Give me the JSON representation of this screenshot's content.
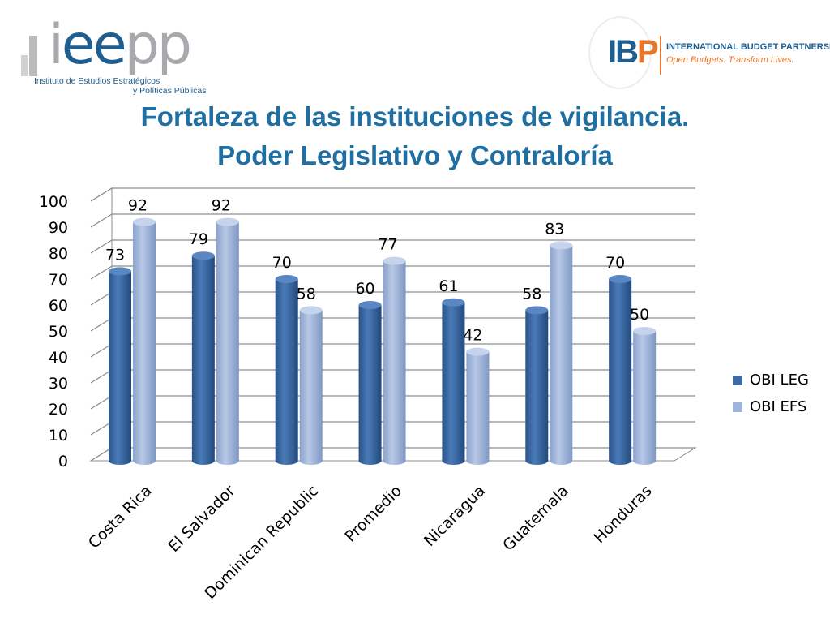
{
  "logos": {
    "ieepp": {
      "line1": "Instituto de Estudios Estratégicos",
      "line2": "y Políticas Públicas"
    },
    "ibp": {
      "name": "INTERNATIONAL BUDGET PARTNERSHIP",
      "tagline": "Open Budgets. Transform Lives."
    }
  },
  "title_line1": "Fortaleza de las instituciones de vigilancia.",
  "title_line2": "Poder Legislativo y Contraloría",
  "chart_data": {
    "type": "bar",
    "title": "Fortaleza de las instituciones de vigilancia. Poder Legislativo y Contraloría",
    "categories": [
      "Costa Rica",
      "El Salvador",
      "Dominican Republic",
      "Promedio",
      "Nicaragua",
      "Guatemala",
      "Honduras"
    ],
    "series": [
      {
        "name": "OBI LEG",
        "values": [
          73,
          79,
          70,
          60,
          61,
          58,
          70
        ],
        "color": "#3d6aa5"
      },
      {
        "name": "OBI EFS",
        "values": [
          92,
          92,
          58,
          77,
          42,
          83,
          50
        ],
        "color": "#9db3da"
      }
    ],
    "ylim": [
      0,
      100
    ],
    "yticks": [
      0,
      10,
      20,
      30,
      40,
      50,
      60,
      70,
      80,
      90,
      100
    ],
    "grid": true,
    "legend_position": "right",
    "data_labels": true,
    "style": "3d-cylinder"
  }
}
